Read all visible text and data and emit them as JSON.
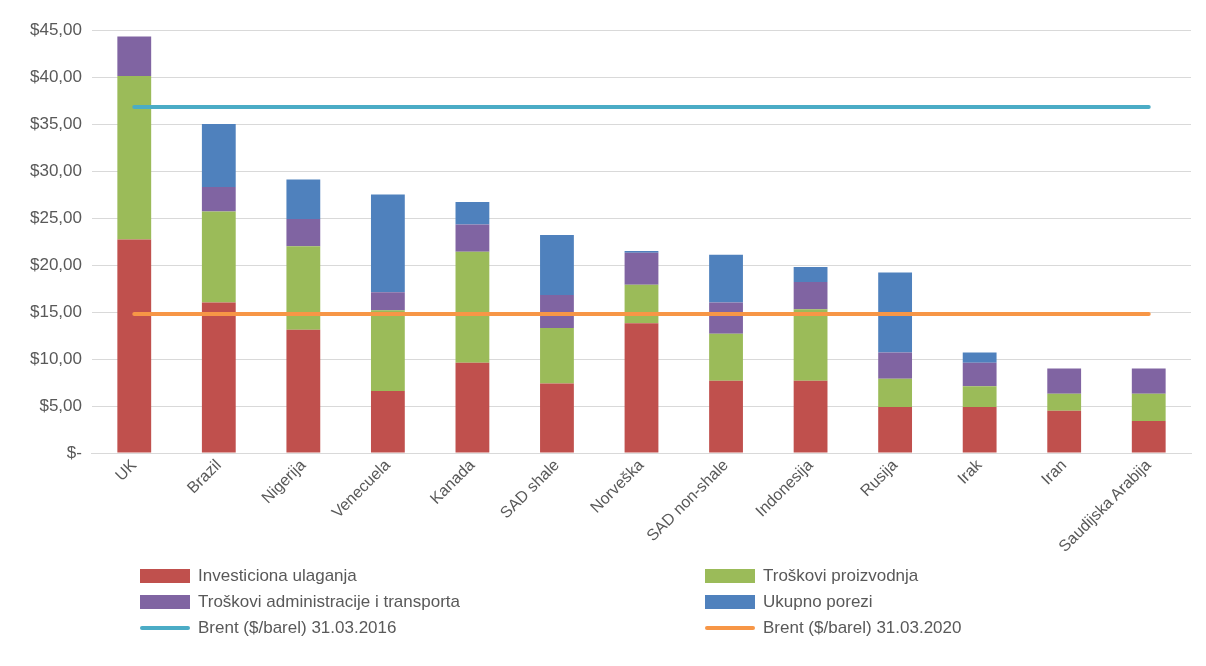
{
  "chart_data": {
    "type": "bar",
    "stacked": true,
    "categories": [
      "UK",
      "Brazil",
      "Nigerija",
      "Venecuela",
      "Kanada",
      "SAD shale",
      "Norveška",
      "SAD non-shale",
      "Indonesija",
      "Rusija",
      "Irak",
      "Iran",
      "Saudijska Arabija"
    ],
    "series": [
      {
        "name": "Investiciona ulaganja",
        "color": "#c0504d",
        "values": [
          22.7,
          16,
          13.1,
          6.6,
          9.6,
          7.4,
          13.8,
          7.7,
          7.7,
          4.9,
          4.9,
          4.5,
          3.4
        ]
      },
      {
        "name": "Troškovi proizvodnja",
        "color": "#9bbb59",
        "values": [
          17.4,
          9.7,
          8.9,
          8.6,
          11.8,
          5.9,
          4.1,
          5,
          7.6,
          3,
          2.2,
          1.8,
          2.9
        ]
      },
      {
        "name": "Troškovi administracije i transporta",
        "color": "#8064a2",
        "values": [
          4.2,
          2.6,
          2.9,
          1.9,
          2.9,
          3.5,
          3.4,
          3.3,
          2.9,
          2.8,
          2.5,
          2.7,
          2.7
        ]
      },
      {
        "name": "Ukupno porezi",
        "color": "#4f81bd",
        "values": [
          0,
          6.7,
          4.2,
          10.4,
          2.4,
          6.4,
          0.2,
          5.1,
          1.6,
          8.5,
          1.1,
          0,
          0
        ]
      },
      {
        "name": "Brent ($/barel) 31.03.2016",
        "type": "line",
        "color": "#4bacc6",
        "values": [
          36.8,
          36.8,
          36.8,
          36.8,
          36.8,
          36.8,
          36.8,
          36.8,
          36.8,
          36.8,
          36.8,
          36.8,
          36.8
        ]
      },
      {
        "name": "Brent ($/barel) 31.03.2020",
        "type": "line",
        "color": "#f79646",
        "values": [
          14.8,
          14.8,
          14.8,
          14.8,
          14.8,
          14.8,
          14.8,
          14.8,
          14.8,
          14.8,
          14.8,
          14.8,
          14.8
        ]
      }
    ],
    "ylim": [
      0,
      45
    ],
    "yticks": [
      {
        "value": 0,
        "label": "$-"
      },
      {
        "value": 5,
        "label": "$5,00"
      },
      {
        "value": 10,
        "label": "$10,00"
      },
      {
        "value": 15,
        "label": "$15,00"
      },
      {
        "value": 20,
        "label": "$20,00"
      },
      {
        "value": 25,
        "label": "$25,00"
      },
      {
        "value": 30,
        "label": "$30,00"
      },
      {
        "value": 35,
        "label": "$35,00"
      },
      {
        "value": 40,
        "label": "$40,00"
      },
      {
        "value": 45,
        "label": "$45,00"
      }
    ],
    "grid": "y",
    "legend": "bottom",
    "marker": "none",
    "line_style": "solid"
  }
}
